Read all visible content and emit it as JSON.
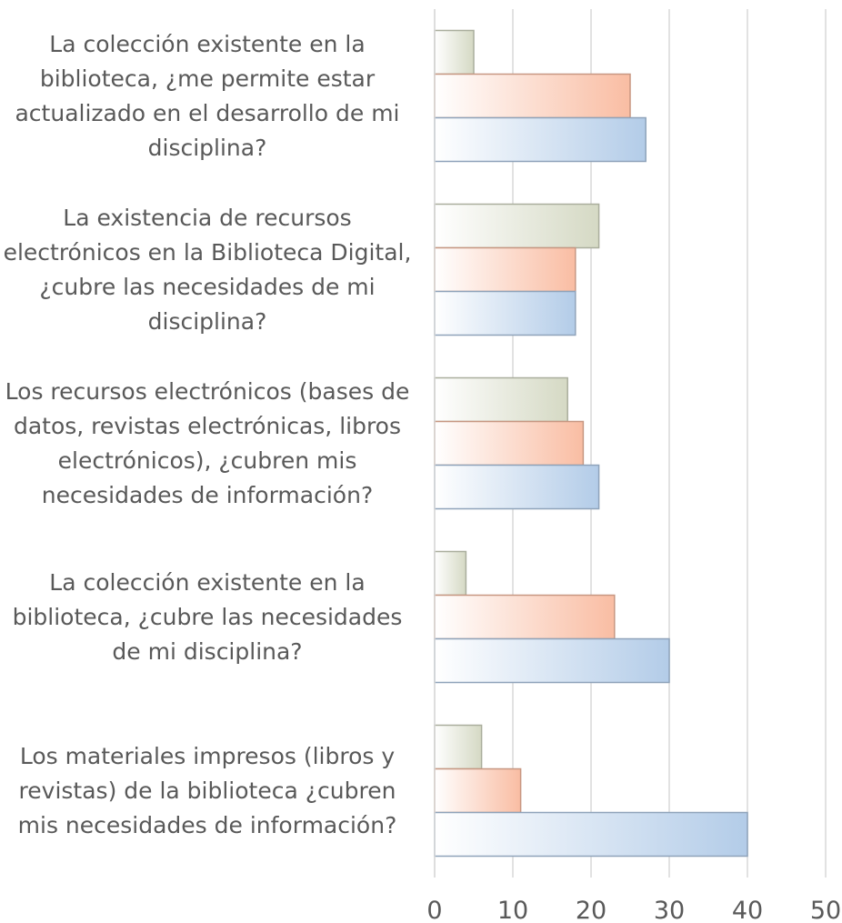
{
  "chart_data": {
    "type": "bar",
    "orientation": "horizontal",
    "categories": [
      "La colección existente en la biblioteca, ¿me permite estar actualizado en el desarrollo de mi disciplina?",
      "La existencia de recursos electrónicos en la Biblioteca Digital, ¿cubre las necesidades de mi disciplina?",
      "Los recursos electrónicos (bases de datos, revistas electrónicas, libros electrónicos), ¿cubren mis necesidades de información?",
      "La colección existente en la biblioteca, ¿cubre las necesidades de mi disciplina?",
      "Los materiales impresos (libros y revistas) de la biblioteca ¿cubren mis necesidades de información?"
    ],
    "series": [
      {
        "color": "#d5d9c4",
        "values": [
          5,
          21,
          17,
          4,
          6
        ]
      },
      {
        "color": "#f9bda3",
        "values": [
          25,
          18,
          19,
          23,
          11
        ]
      },
      {
        "color": "#b3cce8",
        "values": [
          27,
          18,
          21,
          30,
          40
        ]
      }
    ],
    "xlim": [
      0,
      50
    ],
    "xticks": [
      0,
      10,
      20,
      30,
      40,
      50
    ],
    "grid": true
  }
}
